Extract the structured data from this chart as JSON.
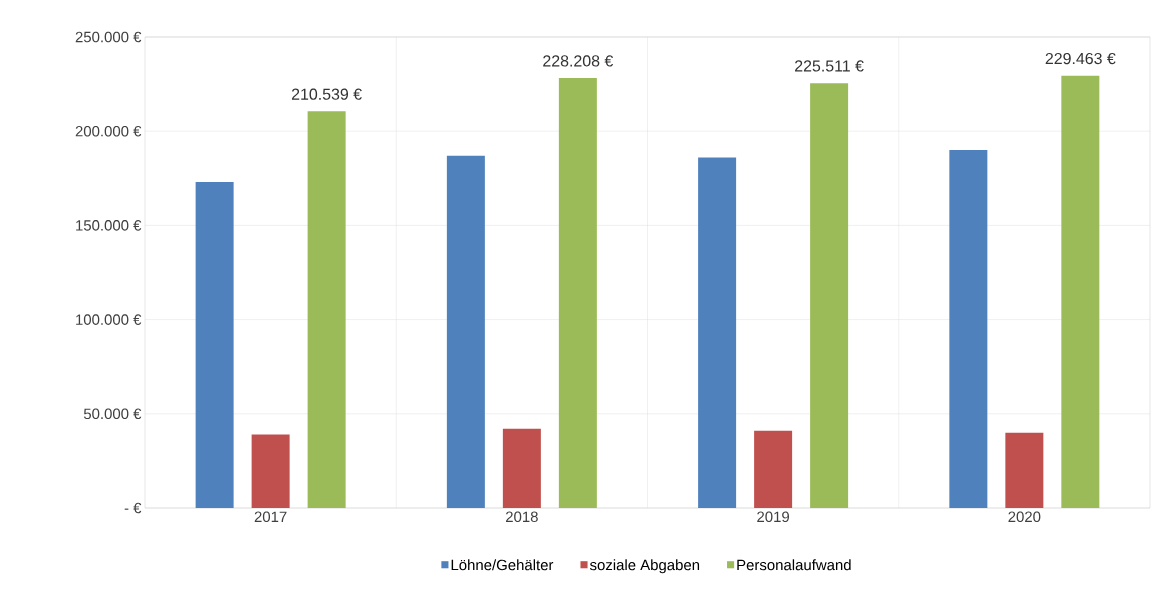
{
  "chart_data": {
    "type": "bar",
    "categories": [
      "2017",
      "2018",
      "2019",
      "2020"
    ],
    "series": [
      {
        "name": "Löhne/Gehälter",
        "color": "#4f81bd",
        "values": [
          173000,
          187000,
          186000,
          190000
        ]
      },
      {
        "name": "soziale Abgaben",
        "color": "#c0504d",
        "values": [
          39000,
          42000,
          41000,
          40000
        ]
      },
      {
        "name": "Personalaufwand",
        "color": "#9bbb59",
        "values": [
          210539,
          228208,
          225511,
          229463
        ],
        "value_labels": [
          "210.539 €",
          "228.208 €",
          "225.511 €",
          "229.463 €"
        ]
      }
    ],
    "ylim": [
      0,
      250000
    ],
    "yticks": [
      {
        "value": 0,
        "label": "- €"
      },
      {
        "value": 50000,
        "label": "50.000 €"
      },
      {
        "value": 100000,
        "label": "100.000 €"
      },
      {
        "value": 150000,
        "label": "150.000 €"
      },
      {
        "value": 200000,
        "label": "200.000 €"
      },
      {
        "value": 250000,
        "label": "250.000 €"
      }
    ],
    "grid": true,
    "legend": "bottom"
  }
}
